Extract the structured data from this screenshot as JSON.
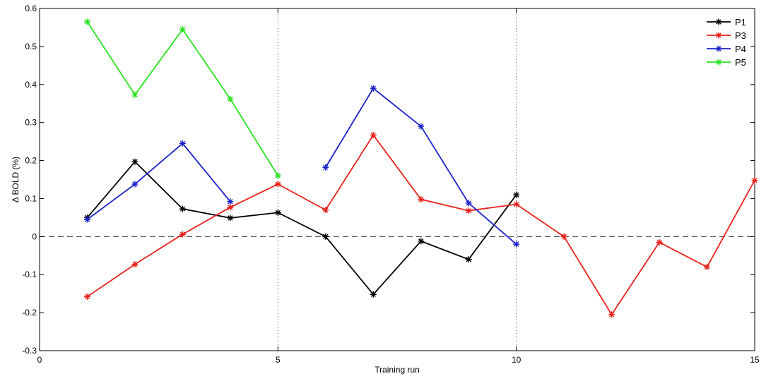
{
  "chart_data": {
    "type": "line",
    "xlabel": "Training run",
    "ylabel": "Δ BOLD (%)",
    "xlim": [
      0,
      15
    ],
    "ylim": [
      -0.3,
      0.6
    ],
    "xticks": [
      0,
      5,
      10,
      15
    ],
    "yticks": [
      -0.3,
      -0.2,
      -0.1,
      0,
      0.1,
      0.2,
      0.3,
      0.4,
      0.5,
      0.6
    ],
    "xtick_labels": [
      "0",
      "5",
      "10",
      "15"
    ],
    "ytick_labels": [
      "-0.3",
      "-0.2",
      "-0.1",
      "0",
      "0.1",
      "0.2",
      "0.3",
      "0.4",
      "0.5",
      "0.6"
    ],
    "reference_line_y": 0,
    "vertical_lines_x": [
      5,
      10
    ],
    "legend_position": "top-right",
    "series": [
      {
        "name": "P1",
        "color": "#000000",
        "segments": [
          {
            "x": [
              1,
              2,
              3,
              4,
              5,
              6,
              7,
              8,
              9,
              10
            ],
            "y": [
              0.05,
              0.197,
              0.073,
              0.049,
              0.063,
              0.0,
              -0.152,
              -0.012,
              -0.06,
              0.11
            ]
          }
        ]
      },
      {
        "name": "P3",
        "color": "#e8211b",
        "segments": [
          {
            "x": [
              1,
              2,
              3,
              4,
              5,
              6,
              7,
              8,
              9,
              10,
              11,
              12,
              13,
              14,
              15
            ],
            "y": [
              -0.158,
              -0.073,
              0.006,
              0.077,
              0.138,
              0.07,
              0.267,
              0.098,
              0.068,
              0.085,
              0.0,
              -0.205,
              -0.015,
              -0.08,
              0.148
            ]
          }
        ]
      },
      {
        "name": "P4",
        "color": "#1a21c9",
        "segments": [
          {
            "x": [
              1,
              2,
              3,
              4
            ],
            "y": [
              0.045,
              0.138,
              0.245,
              0.092
            ]
          },
          {
            "x": [
              6,
              7,
              8,
              9,
              10
            ],
            "y": [
              0.182,
              0.39,
              0.29,
              0.088,
              -0.02
            ]
          }
        ]
      },
      {
        "name": "P5",
        "color": "#27e21e",
        "segments": [
          {
            "x": [
              1,
              2,
              3,
              4,
              5
            ],
            "y": [
              0.565,
              0.373,
              0.545,
              0.362,
              0.16
            ]
          }
        ]
      }
    ]
  }
}
